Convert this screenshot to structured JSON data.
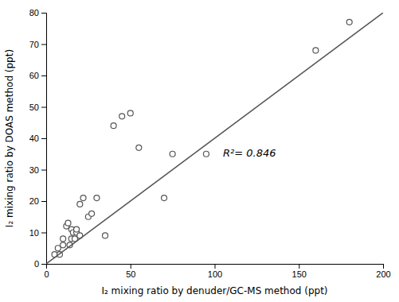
{
  "chart_data": {
    "type": "scatter",
    "xlabel": "I₂ mixing ratio by denuder/GC-MS method (ppt)",
    "ylabel": "I₂ mixing ratio by DOAS method (ppt)",
    "series": [
      {
        "type": "scatter",
        "marker": "circle-open",
        "color": "#555555",
        "x": [
          5,
          7,
          8,
          10,
          10,
          12,
          13,
          14,
          15,
          15,
          16,
          17,
          18,
          18,
          20,
          20,
          22,
          25,
          27,
          30,
          35,
          40,
          45,
          50,
          55,
          70,
          75,
          95,
          160,
          180
        ],
        "values": [
          3,
          5,
          3,
          6,
          8,
          12,
          13,
          6,
          8,
          11,
          10,
          8,
          10,
          11,
          9,
          19,
          21,
          15,
          16,
          21,
          9,
          44,
          47,
          48,
          37,
          21,
          35,
          35,
          68,
          77
        ]
      },
      {
        "type": "line",
        "line_style": "solid",
        "color": "#555555",
        "x": [
          0,
          200
        ],
        "values": [
          0,
          80
        ]
      }
    ],
    "annotations": [
      {
        "text": "R²= 0.846",
        "x": 105,
        "y": 35
      }
    ],
    "xlim": [
      0,
      200
    ],
    "ylim": [
      0,
      80
    ],
    "xticks": [
      0,
      50,
      100,
      150,
      200
    ],
    "yticks": [
      0,
      10,
      20,
      30,
      40,
      50,
      60,
      70,
      80
    ],
    "grid": false
  }
}
